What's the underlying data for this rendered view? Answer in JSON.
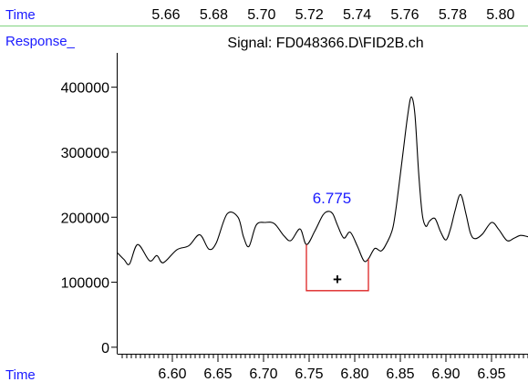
{
  "top_strip": {
    "axis_label": "Time",
    "tick_labels": [
      "5.66",
      "5.68",
      "5.70",
      "5.72",
      "5.74",
      "5.76",
      "5.78",
      "5.80"
    ]
  },
  "header": {
    "response_label": "Response_",
    "signal_title": "Signal: FD048366.D\\FID2B.ch"
  },
  "colors": {
    "label_blue": "#1a1aff",
    "divider_green": "#8fd88f",
    "trace": "#000000",
    "baseline_marker": "#dd2222"
  },
  "chart_data": {
    "type": "line",
    "title": "Signal: FD048366.D\\FID2B.ch",
    "xlabel": "Time",
    "ylabel": "Response_",
    "xlim": [
      6.54,
      6.99
    ],
    "ylim": [
      -10000,
      450000
    ],
    "x_ticks": [
      "6.60",
      "6.65",
      "6.70",
      "6.75",
      "6.80",
      "6.85",
      "6.90",
      "6.95"
    ],
    "x_tick_values": [
      6.6,
      6.65,
      6.7,
      6.75,
      6.8,
      6.85,
      6.9,
      6.95
    ],
    "y_ticks": [
      "0",
      "100000",
      "200000",
      "300000",
      "400000"
    ],
    "y_tick_values": [
      0,
      100000,
      200000,
      300000,
      400000
    ],
    "grid": false,
    "series": [
      {
        "x": [
          6.54,
          6.547,
          6.553,
          6.562,
          6.575,
          6.583,
          6.59,
          6.605,
          6.618,
          6.63,
          6.64,
          6.648,
          6.66,
          6.672,
          6.678,
          6.684,
          6.692,
          6.702,
          6.712,
          6.722,
          6.73,
          6.74,
          6.747,
          6.756,
          6.765,
          6.771,
          6.776,
          6.781,
          6.788,
          6.795,
          6.803,
          6.81,
          6.815,
          6.822,
          6.829,
          6.835,
          6.842,
          6.848,
          6.853,
          6.858,
          6.862,
          6.866,
          6.87,
          6.874,
          6.878,
          6.882,
          6.888,
          6.894,
          6.9,
          6.905,
          6.91,
          6.916,
          6.922,
          6.927,
          6.932,
          6.94,
          6.95,
          6.958,
          6.967,
          6.975,
          6.982,
          6.99
        ],
        "values": [
          145000,
          135000,
          128000,
          158000,
          133000,
          141000,
          130000,
          150000,
          156000,
          173000,
          151000,
          160000,
          205000,
          200000,
          170000,
          155000,
          188000,
          192000,
          190000,
          172000,
          164000,
          182000,
          158000,
          178000,
          203000,
          209000,
          205000,
          188000,
          168000,
          177000,
          155000,
          133000,
          136000,
          152000,
          148000,
          160000,
          185000,
          243000,
          300000,
          356000,
          385000,
          358000,
          270000,
          205000,
          186000,
          194000,
          198000,
          178000,
          165000,
          182000,
          210000,
          235000,
          205000,
          175000,
          167000,
          174000,
          192000,
          181000,
          164000,
          168000,
          172000,
          170000
        ]
      }
    ],
    "annotations": [
      {
        "label": "6.775",
        "x": 6.775,
        "y": 209000
      },
      {
        "label": "+",
        "x": 6.781,
        "y": 105000
      }
    ],
    "baseline_marker": {
      "start": {
        "x": 6.747,
        "y": 158000
      },
      "end": {
        "x": 6.815,
        "y": 136000
      },
      "floor_y": 87000
    }
  }
}
